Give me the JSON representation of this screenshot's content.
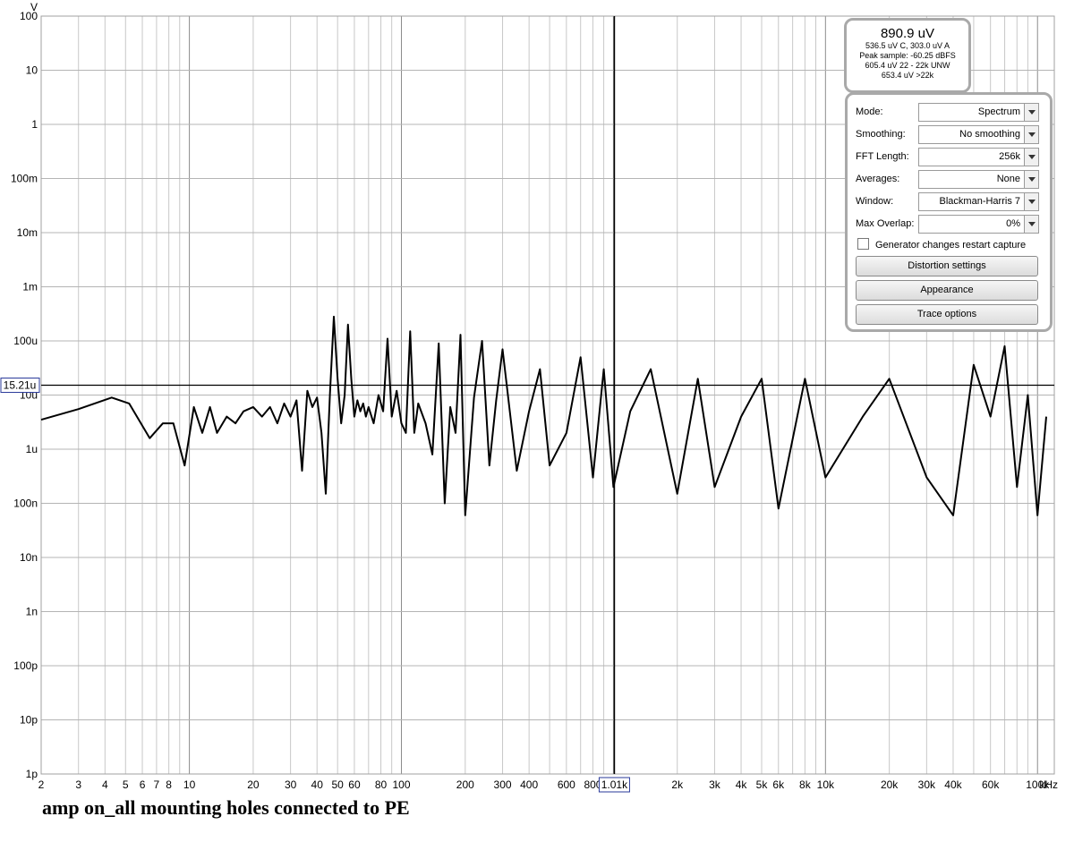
{
  "chart_data": {
    "type": "line",
    "title": "",
    "xlabel": "",
    "ylabel": "V",
    "x_scale": "log",
    "y_scale": "log",
    "xlim": [
      2,
      120000
    ],
    "ylim": [
      1e-12,
      100
    ],
    "grid": true,
    "x_unit_label": "kHz",
    "x_ticks": [
      {
        "v": 2,
        "l": "2"
      },
      {
        "v": 3,
        "l": "3"
      },
      {
        "v": 4,
        "l": "4"
      },
      {
        "v": 5,
        "l": "5"
      },
      {
        "v": 6,
        "l": "6"
      },
      {
        "v": 7,
        "l": "7"
      },
      {
        "v": 8,
        "l": "8"
      },
      {
        "v": 10,
        "l": "10"
      },
      {
        "v": 20,
        "l": "20"
      },
      {
        "v": 30,
        "l": "30"
      },
      {
        "v": 40,
        "l": "40"
      },
      {
        "v": 50,
        "l": "50"
      },
      {
        "v": 60,
        "l": "60"
      },
      {
        "v": 80,
        "l": "80"
      },
      {
        "v": 100,
        "l": "100"
      },
      {
        "v": 200,
        "l": "200"
      },
      {
        "v": 300,
        "l": "300"
      },
      {
        "v": 400,
        "l": "400"
      },
      {
        "v": 600,
        "l": "600"
      },
      {
        "v": 800,
        "l": "800"
      },
      {
        "v": 2000,
        "l": "2k"
      },
      {
        "v": 3000,
        "l": "3k"
      },
      {
        "v": 4000,
        "l": "4k"
      },
      {
        "v": 5000,
        "l": "5k"
      },
      {
        "v": 6000,
        "l": "6k"
      },
      {
        "v": 8000,
        "l": "8k"
      },
      {
        "v": 10000,
        "l": "10k"
      },
      {
        "v": 20000,
        "l": "20k"
      },
      {
        "v": 30000,
        "l": "30k"
      },
      {
        "v": 40000,
        "l": "40k"
      },
      {
        "v": 60000,
        "l": "60k"
      },
      {
        "v": 100000,
        "l": "100k"
      }
    ],
    "y_ticks": [
      {
        "v": 100,
        "l": "100"
      },
      {
        "v": 10,
        "l": "10"
      },
      {
        "v": 1,
        "l": "1"
      },
      {
        "v": 0.1,
        "l": "100m"
      },
      {
        "v": 0.01,
        "l": "10m"
      },
      {
        "v": 0.001,
        "l": "1m"
      },
      {
        "v": 0.0001,
        "l": "100u"
      },
      {
        "v": 1e-05,
        "l": "10u"
      },
      {
        "v": 1e-06,
        "l": "1u"
      },
      {
        "v": 1e-07,
        "l": "100n"
      },
      {
        "v": 1e-08,
        "l": "10n"
      },
      {
        "v": 1e-09,
        "l": "1n"
      },
      {
        "v": 1e-10,
        "l": "100p"
      },
      {
        "v": 1e-11,
        "l": "10p"
      },
      {
        "v": 1e-12,
        "l": "1p"
      }
    ],
    "cursor": {
      "x": 1010,
      "x_label": "1.01k",
      "y": 1.521e-05,
      "y_label": "15.21u"
    },
    "series": [
      {
        "x": [
          2,
          3,
          4.3,
          5.2,
          6.5,
          7.5,
          8.4,
          9.5,
          10.5,
          11.5,
          12.5,
          13.5,
          15,
          16.5,
          18,
          20,
          22,
          24,
          26,
          28,
          30,
          32,
          34,
          36,
          38,
          40,
          42,
          44,
          46,
          48,
          50,
          52,
          54,
          56,
          58,
          60,
          62,
          64,
          66,
          68,
          70,
          74,
          78,
          82,
          86,
          90,
          95,
          100,
          105,
          110,
          115,
          120,
          130,
          140,
          150,
          160,
          170,
          180,
          190,
          200,
          220,
          240,
          260,
          280,
          300,
          350,
          400,
          450,
          500,
          600,
          700,
          800,
          900,
          1000,
          1200,
          1500,
          2000,
          2500,
          3000,
          4000,
          5000,
          6000,
          8000,
          10000,
          15000,
          20000,
          30000,
          40000,
          50000,
          60000,
          70000,
          80000,
          90000,
          100000,
          110000
        ],
        "y": [
          3.5e-06,
          5.5e-06,
          9e-06,
          7e-06,
          1.6e-06,
          3e-06,
          3e-06,
          5e-07,
          6e-06,
          2e-06,
          6e-06,
          2e-06,
          4e-06,
          3e-06,
          5e-06,
          6e-06,
          4e-06,
          6e-06,
          3e-06,
          7e-06,
          4e-06,
          8e-06,
          4e-07,
          1.2e-05,
          6e-06,
          9e-06,
          2e-06,
          1.5e-07,
          1e-05,
          0.00028,
          2e-05,
          3e-06,
          1e-05,
          0.0002,
          2e-05,
          4e-06,
          8e-06,
          5e-06,
          7e-06,
          4e-06,
          6e-06,
          3e-06,
          1e-05,
          5e-06,
          0.00011,
          4e-06,
          1.2e-05,
          3e-06,
          2e-06,
          0.00015,
          2e-06,
          7e-06,
          3e-06,
          8e-07,
          9e-05,
          1e-07,
          6e-06,
          2e-06,
          0.00013,
          6e-08,
          9e-06,
          0.0001,
          5e-07,
          8e-06,
          7e-05,
          4e-07,
          5e-06,
          3e-05,
          5e-07,
          2e-06,
          5e-05,
          3e-07,
          3e-05,
          2e-07,
          5e-06,
          3e-05,
          1.5e-07,
          2e-05,
          2e-07,
          4e-06,
          2e-05,
          8e-08,
          2e-05,
          3e-07,
          4e-06,
          2e-05,
          3e-07,
          6e-08,
          3.6e-05,
          4e-06,
          8e-05,
          2e-07,
          1e-05,
          6e-08,
          4e-06
        ]
      }
    ]
  },
  "readout": {
    "main": "890.9 uV",
    "line1": "536.5 uV C, 303.0 uV A",
    "line2": "Peak sample: -60.25 dBFS",
    "line3": "605.4 uV 22 - 22k UNW",
    "line4": "653.4 uV >22k"
  },
  "controls": {
    "mode_label": "Mode:",
    "mode_value": "Spectrum",
    "smoothing_label": "Smoothing:",
    "smoothing_value": "No  smoothing",
    "fft_label": "FFT Length:",
    "fft_value": "256k",
    "averages_label": "Averages:",
    "averages_value": "None",
    "window_label": "Window:",
    "window_value": "Blackman-Harris 7",
    "overlap_label": "Max Overlap:",
    "overlap_value": "0%",
    "restart_label": "Generator changes restart capture",
    "restart_checked": false,
    "distortion_button": "Distortion settings",
    "appearance_button": "Appearance",
    "trace_button": "Trace options"
  },
  "caption": "amp on_all mounting holes connected to PE"
}
